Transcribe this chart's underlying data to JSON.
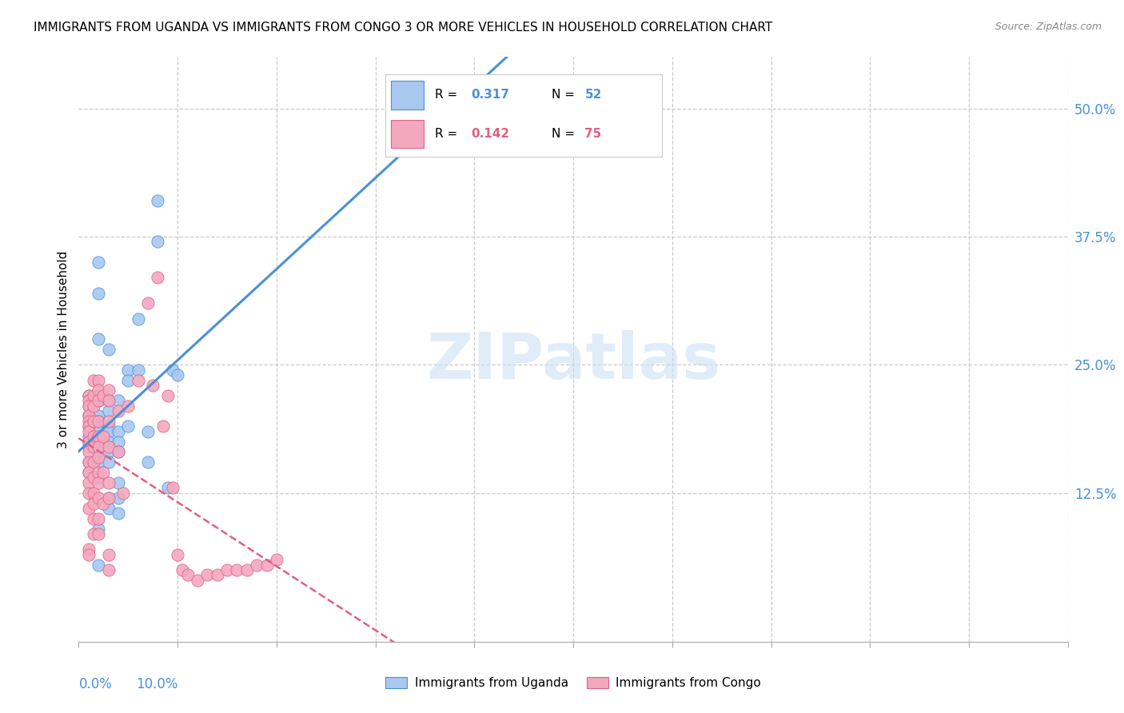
{
  "title": "IMMIGRANTS FROM UGANDA VS IMMIGRANTS FROM CONGO 3 OR MORE VEHICLES IN HOUSEHOLD CORRELATION CHART",
  "source": "Source: ZipAtlas.com",
  "ylabel": "3 or more Vehicles in Household",
  "ytick_labels": [
    "12.5%",
    "25.0%",
    "37.5%",
    "50.0%"
  ],
  "ytick_values": [
    12.5,
    25.0,
    37.5,
    50.0
  ],
  "xlim": [
    0,
    10.0
  ],
  "ylim": [
    -2,
    55
  ],
  "legend_uganda_R": "0.317",
  "legend_uganda_N": "52",
  "legend_congo_R": "0.142",
  "legend_congo_N": "75",
  "uganda_color": "#a8c8f0",
  "congo_color": "#f4a8c0",
  "uganda_line_color": "#4a90d9",
  "congo_line_color": "#e06080",
  "watermark": "ZIPatlas",
  "uganda_points": [
    [
      0.1,
      21.0
    ],
    [
      0.1,
      17.0
    ],
    [
      0.1,
      22.0
    ],
    [
      0.1,
      19.0
    ],
    [
      0.1,
      18.0
    ],
    [
      0.1,
      15.5
    ],
    [
      0.1,
      14.5
    ],
    [
      0.1,
      20.0
    ],
    [
      0.1,
      17.5
    ],
    [
      0.2,
      35.0
    ],
    [
      0.2,
      32.0
    ],
    [
      0.2,
      27.5
    ],
    [
      0.2,
      22.0
    ],
    [
      0.2,
      21.5
    ],
    [
      0.2,
      20.0
    ],
    [
      0.2,
      19.5
    ],
    [
      0.2,
      18.5
    ],
    [
      0.2,
      17.5
    ],
    [
      0.2,
      16.5
    ],
    [
      0.2,
      15.5
    ],
    [
      0.2,
      14.0
    ],
    [
      0.2,
      9.0
    ],
    [
      0.2,
      5.5
    ],
    [
      0.3,
      26.5
    ],
    [
      0.3,
      21.5
    ],
    [
      0.3,
      20.5
    ],
    [
      0.3,
      19.0
    ],
    [
      0.3,
      18.5
    ],
    [
      0.3,
      17.5
    ],
    [
      0.3,
      16.5
    ],
    [
      0.3,
      15.5
    ],
    [
      0.3,
      12.0
    ],
    [
      0.3,
      11.0
    ],
    [
      0.4,
      21.5
    ],
    [
      0.4,
      18.5
    ],
    [
      0.4,
      17.5
    ],
    [
      0.4,
      16.5
    ],
    [
      0.4,
      13.5
    ],
    [
      0.4,
      12.0
    ],
    [
      0.4,
      10.5
    ],
    [
      0.5,
      24.5
    ],
    [
      0.5,
      23.5
    ],
    [
      0.5,
      19.0
    ],
    [
      0.6,
      29.5
    ],
    [
      0.6,
      24.5
    ],
    [
      0.7,
      18.5
    ],
    [
      0.7,
      15.5
    ],
    [
      0.8,
      41.0
    ],
    [
      0.8,
      37.0
    ],
    [
      0.9,
      13.0
    ],
    [
      0.95,
      24.5
    ],
    [
      1.0,
      24.0
    ]
  ],
  "congo_points": [
    [
      0.1,
      22.0
    ],
    [
      0.1,
      21.5
    ],
    [
      0.1,
      21.0
    ],
    [
      0.1,
      20.0
    ],
    [
      0.1,
      19.5
    ],
    [
      0.1,
      19.0
    ],
    [
      0.1,
      18.5
    ],
    [
      0.1,
      17.5
    ],
    [
      0.1,
      16.5
    ],
    [
      0.1,
      15.5
    ],
    [
      0.1,
      14.5
    ],
    [
      0.1,
      13.5
    ],
    [
      0.1,
      12.5
    ],
    [
      0.1,
      11.0
    ],
    [
      0.1,
      7.0
    ],
    [
      0.1,
      6.5
    ],
    [
      0.15,
      23.5
    ],
    [
      0.15,
      22.0
    ],
    [
      0.15,
      21.0
    ],
    [
      0.15,
      19.5
    ],
    [
      0.15,
      18.0
    ],
    [
      0.15,
      17.0
    ],
    [
      0.15,
      15.5
    ],
    [
      0.15,
      14.0
    ],
    [
      0.15,
      12.5
    ],
    [
      0.15,
      11.5
    ],
    [
      0.15,
      10.0
    ],
    [
      0.15,
      8.5
    ],
    [
      0.2,
      23.5
    ],
    [
      0.2,
      22.5
    ],
    [
      0.2,
      21.5
    ],
    [
      0.2,
      19.5
    ],
    [
      0.2,
      18.0
    ],
    [
      0.2,
      17.0
    ],
    [
      0.2,
      16.0
    ],
    [
      0.2,
      14.5
    ],
    [
      0.2,
      13.5
    ],
    [
      0.2,
      12.0
    ],
    [
      0.2,
      10.0
    ],
    [
      0.2,
      8.5
    ],
    [
      0.25,
      22.0
    ],
    [
      0.25,
      18.0
    ],
    [
      0.25,
      14.5
    ],
    [
      0.25,
      11.5
    ],
    [
      0.3,
      22.5
    ],
    [
      0.3,
      21.5
    ],
    [
      0.3,
      19.5
    ],
    [
      0.3,
      17.0
    ],
    [
      0.3,
      13.5
    ],
    [
      0.3,
      12.0
    ],
    [
      0.3,
      6.5
    ],
    [
      0.3,
      5.0
    ],
    [
      0.4,
      20.5
    ],
    [
      0.4,
      16.5
    ],
    [
      0.45,
      12.5
    ],
    [
      0.5,
      21.0
    ],
    [
      0.6,
      23.5
    ],
    [
      0.7,
      31.0
    ],
    [
      0.75,
      23.0
    ],
    [
      0.8,
      33.5
    ],
    [
      0.85,
      19.0
    ],
    [
      0.9,
      22.0
    ],
    [
      0.95,
      13.0
    ],
    [
      1.0,
      6.5
    ],
    [
      1.05,
      5.0
    ],
    [
      1.1,
      4.5
    ],
    [
      1.2,
      4.0
    ],
    [
      1.3,
      4.5
    ],
    [
      1.4,
      4.5
    ],
    [
      1.5,
      5.0
    ],
    [
      1.6,
      5.0
    ],
    [
      1.7,
      5.0
    ],
    [
      1.8,
      5.5
    ],
    [
      1.9,
      5.5
    ],
    [
      2.0,
      6.0
    ]
  ]
}
